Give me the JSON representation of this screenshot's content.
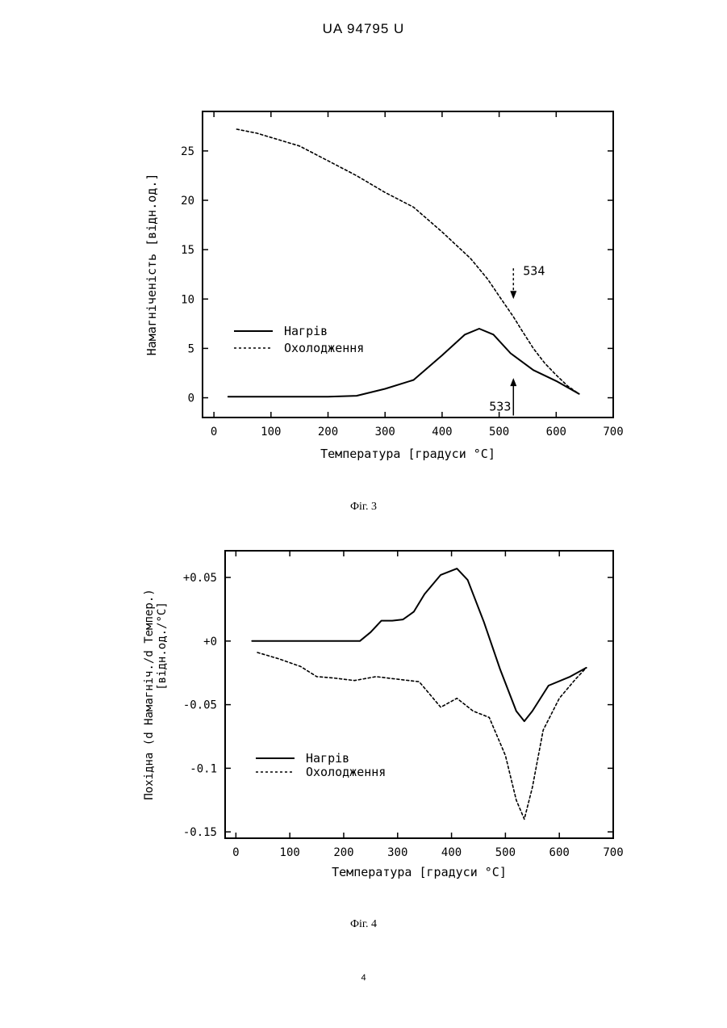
{
  "header": {
    "text": "UA   94795   U"
  },
  "page_number": "4",
  "figures": [
    {
      "caption": "Фіг. 3"
    },
    {
      "caption": "Фіг. 4"
    }
  ],
  "chart_data": [
    {
      "type": "line",
      "xlabel": "Температура [градуси °C]",
      "ylabel": "Намагніченість [відн.од.]",
      "xlim": [
        -20,
        700
      ],
      "ylim": [
        -2,
        29
      ],
      "xticks": [
        0,
        100,
        200,
        300,
        400,
        500,
        600,
        700
      ],
      "yticks": [
        0,
        5,
        10,
        15,
        20,
        25
      ],
      "ytick_labels": [
        "0",
        "5",
        "10",
        "15",
        "20",
        "25"
      ],
      "legend_position": "center-left",
      "series": [
        {
          "name": "Нагрів",
          "style": "solid",
          "x": [
            25,
            100,
            200,
            250,
            300,
            350,
            400,
            440,
            465,
            490,
            520,
            560,
            600,
            640
          ],
          "y": [
            0.1,
            0.1,
            0.1,
            0.2,
            0.9,
            1.8,
            4.3,
            6.4,
            7.0,
            6.4,
            4.5,
            2.8,
            1.7,
            0.4
          ]
        },
        {
          "name": "Охолодження",
          "style": "dashed",
          "x": [
            40,
            75,
            150,
            200,
            250,
            300,
            350,
            400,
            450,
            480,
            500,
            525,
            540,
            560,
            580,
            600,
            620,
            640
          ],
          "y": [
            27.2,
            26.8,
            25.5,
            24.0,
            22.5,
            20.8,
            19.3,
            16.8,
            14.1,
            12.0,
            10.3,
            8.2,
            6.8,
            5.0,
            3.5,
            2.3,
            1.2,
            0.4
          ]
        }
      ],
      "annotations": [
        {
          "text": "534",
          "x": 525,
          "y": 10,
          "arrow": "down-dashed"
        },
        {
          "text": "533",
          "x": 525,
          "y": 2,
          "arrow": "up-solid"
        }
      ]
    },
    {
      "type": "line",
      "xlabel": "Температура [градуси °C]",
      "ylabel": "Похідна (d Намагніч./d Темпер.) [відн.од./°C]",
      "xlim": [
        -20,
        700
      ],
      "ylim": [
        -0.155,
        0.071
      ],
      "xticks": [
        0,
        100,
        200,
        300,
        400,
        500,
        600,
        700
      ],
      "yticks": [
        0.05,
        0,
        -0.05,
        -0.1,
        -0.15
      ],
      "ytick_labels": [
        "+0.05",
        "+0",
        "-0.05",
        "-0.1",
        "-0.15"
      ],
      "legend_position": "bottom-left",
      "series": [
        {
          "name": "Нагрів",
          "style": "solid",
          "x": [
            30,
            100,
            150,
            200,
            230,
            250,
            270,
            290,
            310,
            330,
            350,
            380,
            410,
            430,
            460,
            490,
            520,
            535,
            550,
            580,
            620,
            650
          ],
          "y": [
            0,
            0,
            0,
            0,
            0,
            0.007,
            0.016,
            0.016,
            0.017,
            0.023,
            0.037,
            0.052,
            0.057,
            0.048,
            0.015,
            -0.022,
            -0.055,
            -0.063,
            -0.055,
            -0.035,
            -0.028,
            -0.021
          ]
        },
        {
          "name": "Охолодження",
          "style": "dashed",
          "x": [
            40,
            80,
            120,
            150,
            180,
            220,
            260,
            300,
            340,
            360,
            380,
            410,
            440,
            470,
            500,
            520,
            535,
            550,
            570,
            600,
            630,
            650
          ],
          "y": [
            -0.009,
            -0.014,
            -0.02,
            -0.028,
            -0.029,
            -0.031,
            -0.028,
            -0.03,
            -0.032,
            -0.042,
            -0.052,
            -0.045,
            -0.055,
            -0.06,
            -0.09,
            -0.125,
            -0.14,
            -0.115,
            -0.07,
            -0.045,
            -0.03,
            -0.021
          ]
        }
      ]
    }
  ]
}
